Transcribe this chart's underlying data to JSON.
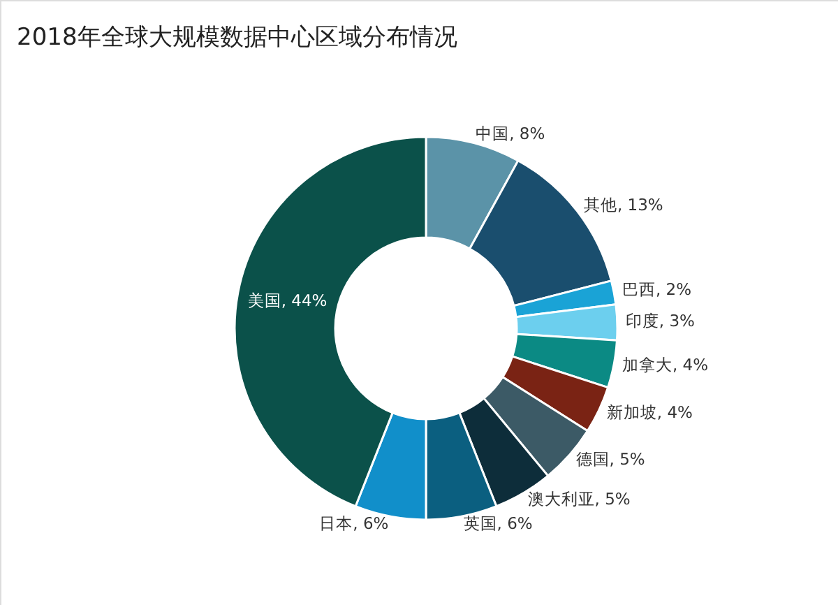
{
  "chart_data": {
    "type": "donut",
    "title": "2018年全球大规模数据中心区域分布情况",
    "categories": [
      "中国",
      "其他",
      "巴西",
      "印度",
      "加拿大",
      "新加坡",
      "德国",
      "澳大利亚",
      "英国",
      "日本",
      "美国"
    ],
    "values": [
      8,
      13,
      2,
      3,
      4,
      4,
      5,
      5,
      6,
      6,
      44
    ],
    "value_labels": [
      "8%",
      "13%",
      "2%",
      "3%",
      "4%",
      "4%",
      "5%",
      "5%",
      "6%",
      "6%",
      "44%"
    ],
    "colors": [
      "#5b93a8",
      "#1a4e6e",
      "#1aa3d6",
      "#6ccfee",
      "#0b8a84",
      "#7a2314",
      "#3c5a66",
      "#0d2d3a",
      "#0b5f80",
      "#118fca",
      "#0b514a"
    ],
    "legend": false
  }
}
